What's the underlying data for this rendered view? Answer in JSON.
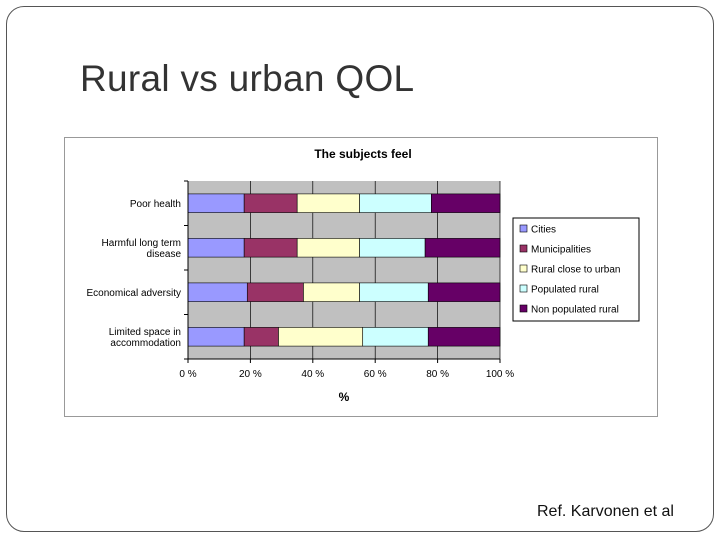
{
  "slide": {
    "title": "Rural vs urban QOL",
    "reference": "Ref. Karvonen et al"
  },
  "chart_data": {
    "type": "bar",
    "orientation": "horizontal",
    "stacked": "percent",
    "title": "The subjects feel",
    "xlabel": "%",
    "ylabel": "",
    "xlim": [
      0,
      100
    ],
    "x_ticks": [
      "0 %",
      "20 %",
      "40 %",
      "60 %",
      "80 %",
      "100 %"
    ],
    "grid": true,
    "legend_position": "right",
    "categories": [
      [
        "Poor health"
      ],
      [
        "Harmful long term",
        "disease"
      ],
      [
        "Economical adversity"
      ],
      [
        "Limited space in",
        "accommodation"
      ]
    ],
    "series": [
      {
        "name": "Cities",
        "color": "#9999ff",
        "values": [
          18,
          18,
          19,
          18
        ]
      },
      {
        "name": "Municipalities",
        "color": "#993366",
        "values": [
          17,
          17,
          18,
          11
        ]
      },
      {
        "name": "Rural close to urban",
        "color": "#ffffcc",
        "values": [
          20,
          20,
          18,
          27
        ]
      },
      {
        "name": "Populated rural",
        "color": "#ccffff",
        "values": [
          23,
          21,
          22,
          21
        ]
      },
      {
        "name": "Non populated  rural",
        "color": "#660066",
        "values": [
          22,
          24,
          23,
          23
        ]
      }
    ]
  }
}
